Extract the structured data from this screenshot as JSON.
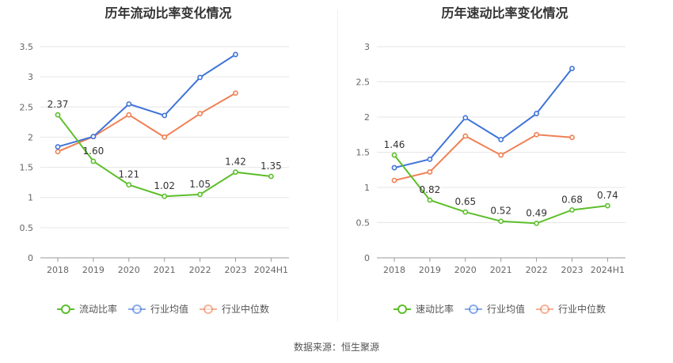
{
  "chart_data": [
    {
      "type": "line",
      "title": "历年流动比率变化情况",
      "categories": [
        "2018",
        "2019",
        "2020",
        "2021",
        "2022",
        "2023",
        "2024H1"
      ],
      "ylim": [
        0,
        3.5
      ],
      "yticks": [
        "0",
        "0.5",
        "1",
        "1.5",
        "2",
        "2.5",
        "3",
        "3.5"
      ],
      "series": [
        {
          "name": "流动比率",
          "color": "#5cbf2a",
          "labeled": true,
          "values": [
            2.37,
            1.6,
            1.21,
            1.02,
            1.05,
            1.42,
            1.35
          ],
          "labels": [
            "2.37",
            "1.60",
            "1.21",
            "1.02",
            "1.05",
            "1.42",
            "1.35"
          ]
        },
        {
          "name": "行业均值",
          "color": "#3f74d9",
          "labeled": false,
          "values": [
            1.84,
            2.01,
            2.55,
            2.36,
            2.99,
            3.37,
            null
          ]
        },
        {
          "name": "行业中位数",
          "color": "#f08055",
          "labeled": false,
          "values": [
            1.76,
            2.01,
            2.37,
            2.0,
            2.39,
            2.73,
            null
          ]
        }
      ],
      "legend_position": "bottom"
    },
    {
      "type": "line",
      "title": "历年速动比率变化情况",
      "categories": [
        "2018",
        "2019",
        "2020",
        "2021",
        "2022",
        "2023",
        "2024H1"
      ],
      "ylim": [
        0,
        3
      ],
      "yticks": [
        "0",
        "0.5",
        "1",
        "1.5",
        "2",
        "2.5",
        "3"
      ],
      "series": [
        {
          "name": "速动比率",
          "color": "#5cbf2a",
          "labeled": true,
          "values": [
            1.46,
            0.82,
            0.65,
            0.52,
            0.49,
            0.68,
            0.74
          ],
          "labels": [
            "1.46",
            "0.82",
            "0.65",
            "0.52",
            "0.49",
            "0.68",
            "0.74"
          ]
        },
        {
          "name": "行业均值",
          "color": "#3f74d9",
          "labeled": false,
          "values": [
            1.28,
            1.4,
            1.99,
            1.68,
            2.05,
            2.69,
            null
          ]
        },
        {
          "name": "行业中位数",
          "color": "#f08055",
          "labeled": false,
          "values": [
            1.1,
            1.22,
            1.73,
            1.46,
            1.75,
            1.71,
            null
          ]
        }
      ],
      "legend_position": "bottom"
    }
  ],
  "source": "数据来源：恒生聚源"
}
